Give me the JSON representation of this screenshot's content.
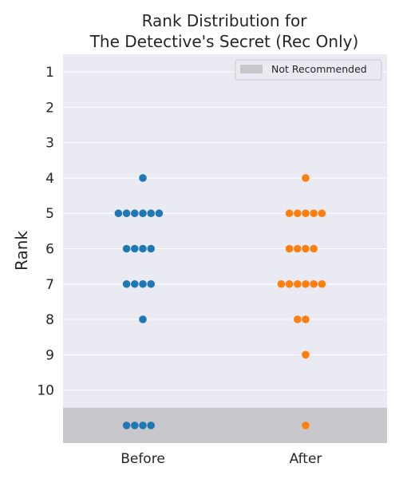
{
  "chart_data": {
    "type": "scatter",
    "title_lines": [
      "Rank Distribution for",
      "The Detective's Secret (Rec Only)"
    ],
    "ylabel": "Rank",
    "categories": [
      "Before",
      "After"
    ],
    "y_ticks": [
      "1",
      "2",
      "3",
      "4",
      "5",
      "6",
      "7",
      "8",
      "9",
      "10"
    ],
    "ylim": [
      0.5,
      11.5
    ],
    "y_inverted": true,
    "grid": true,
    "legend": {
      "label": "Not Recommended",
      "placement": "top-right"
    },
    "not_recommended_band": [
      10.5,
      11.5
    ],
    "series": [
      {
        "category": "Before",
        "color": "#1f77b4",
        "points": [
          {
            "rank": 4,
            "count": 1
          },
          {
            "rank": 5,
            "count": 6
          },
          {
            "rank": 6,
            "count": 4
          },
          {
            "rank": 7,
            "count": 4
          },
          {
            "rank": 8,
            "count": 1
          },
          {
            "rank": "not_recommended",
            "count": 4
          }
        ]
      },
      {
        "category": "After",
        "color": "#ff7f0e",
        "points": [
          {
            "rank": 4,
            "count": 1
          },
          {
            "rank": 5,
            "count": 5
          },
          {
            "rank": 6,
            "count": 4
          },
          {
            "rank": 7,
            "count": 6
          },
          {
            "rank": 8,
            "count": 2
          },
          {
            "rank": 9,
            "count": 1
          },
          {
            "rank": "not_recommended",
            "count": 1
          }
        ]
      }
    ],
    "colors": {
      "plot_bg": "#eaeaf2",
      "grid": "#ffffff",
      "band": "#c8c8cc",
      "text": "#262626"
    }
  }
}
